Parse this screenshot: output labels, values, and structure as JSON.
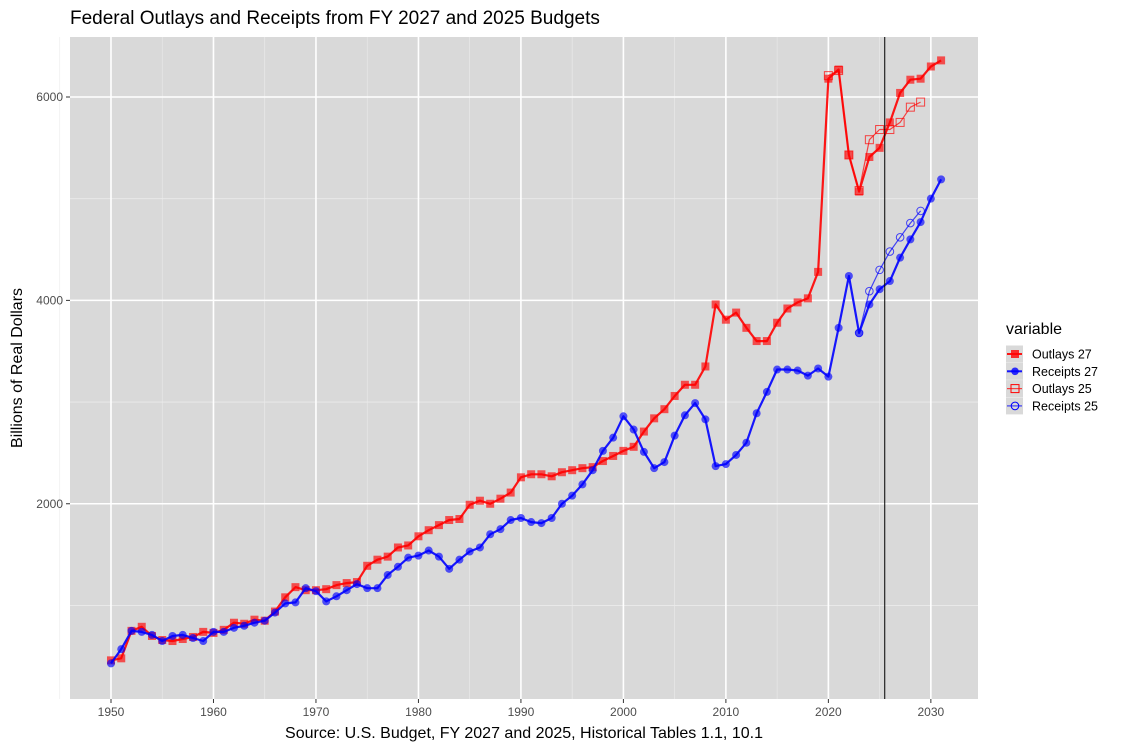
{
  "chart_data": {
    "type": "line",
    "title": "Federal Outlays and Receipts from FY 2027 and 2025 Budgets",
    "xlabel": "Source: U.S. Budget, FY 2027 and 2025, Historical Tables 1.1, 10.1",
    "ylabel": "Billions of Real Dollars",
    "xlim": [
      1946.0,
      2034.6
    ],
    "ylim": [
      80,
      6590
    ],
    "x_ticks": [
      1950,
      1960,
      1970,
      1980,
      1990,
      2000,
      2010,
      2020,
      2030
    ],
    "x_tick_labels": [
      "1950",
      "1960",
      "1970",
      "1980",
      "1990",
      "2000",
      "2010",
      "2020",
      "2030"
    ],
    "y_ticks": [
      2000,
      4000,
      6000
    ],
    "y_tick_labels": [
      "2000",
      "4000",
      "6000"
    ],
    "y_minor_gridlines": [
      1000,
      3000,
      5000
    ],
    "grid": true,
    "vline": 2025.5,
    "legend": {
      "title": "variable",
      "position": "right"
    },
    "series": [
      {
        "name": "Outlays 27",
        "color": "#ff0000",
        "marker": "square-filled",
        "x": [
          1950,
          1951,
          1952,
          1953,
          1954,
          1955,
          1956,
          1957,
          1958,
          1959,
          1960,
          1961,
          1962,
          1963,
          1964,
          1965,
          1966,
          1967,
          1968,
          1969,
          1970,
          1971,
          1972,
          1973,
          1974,
          1975,
          1976,
          1977,
          1978,
          1979,
          1980,
          1981,
          1982,
          1983,
          1984,
          1985,
          1986,
          1987,
          1988,
          1989,
          1990,
          1991,
          1992,
          1993,
          1994,
          1995,
          1996,
          1997,
          1998,
          1999,
          2000,
          2001,
          2002,
          2003,
          2004,
          2005,
          2006,
          2007,
          2008,
          2009,
          2010,
          2011,
          2012,
          2013,
          2014,
          2015,
          2016,
          2017,
          2018,
          2019,
          2020,
          2021,
          2022,
          2023,
          2024,
          2025,
          2026,
          2027,
          2028,
          2029,
          2030,
          2031
        ],
        "values": [
          460,
          480,
          750,
          790,
          700,
          660,
          650,
          670,
          690,
          740,
          730,
          760,
          830,
          820,
          860,
          850,
          940,
          1080,
          1180,
          1150,
          1150,
          1160,
          1200,
          1220,
          1230,
          1390,
          1450,
          1480,
          1570,
          1590,
          1680,
          1740,
          1790,
          1840,
          1850,
          1990,
          2030,
          2000,
          2050,
          2110,
          2260,
          2290,
          2290,
          2270,
          2310,
          2330,
          2350,
          2360,
          2420,
          2470,
          2520,
          2560,
          2710,
          2840,
          2930,
          3060,
          3170,
          3170,
          3350,
          3960,
          3810,
          3880,
          3730,
          3600,
          3600,
          3780,
          3920,
          3980,
          4020,
          4280,
          6180,
          6270,
          5430,
          5070,
          5410,
          5500,
          5750,
          6040,
          6170,
          6180,
          6300,
          6360
        ]
      },
      {
        "name": "Receipts 27",
        "color": "#0000ff",
        "marker": "circle-filled",
        "x": [
          1950,
          1951,
          1952,
          1953,
          1954,
          1955,
          1956,
          1957,
          1958,
          1959,
          1960,
          1961,
          1962,
          1963,
          1964,
          1965,
          1966,
          1967,
          1968,
          1969,
          1970,
          1971,
          1972,
          1973,
          1974,
          1975,
          1976,
          1977,
          1978,
          1979,
          1980,
          1981,
          1982,
          1983,
          1984,
          1985,
          1986,
          1987,
          1988,
          1989,
          1990,
          1991,
          1992,
          1993,
          1994,
          1995,
          1996,
          1997,
          1998,
          1999,
          2000,
          2001,
          2002,
          2003,
          2004,
          2005,
          2006,
          2007,
          2008,
          2009,
          2010,
          2011,
          2012,
          2013,
          2014,
          2015,
          2016,
          2017,
          2018,
          2019,
          2020,
          2021,
          2022,
          2023,
          2024,
          2025,
          2026,
          2027,
          2028,
          2029,
          2030,
          2031
        ],
        "values": [
          430,
          570,
          750,
          740,
          710,
          650,
          700,
          710,
          680,
          650,
          740,
          740,
          780,
          800,
          830,
          850,
          930,
          1020,
          1030,
          1170,
          1140,
          1040,
          1090,
          1150,
          1210,
          1170,
          1170,
          1300,
          1380,
          1470,
          1490,
          1540,
          1480,
          1360,
          1450,
          1530,
          1570,
          1700,
          1750,
          1840,
          1860,
          1820,
          1810,
          1860,
          2000,
          2080,
          2190,
          2330,
          2520,
          2650,
          2860,
          2730,
          2510,
          2350,
          2410,
          2670,
          2870,
          2990,
          2830,
          2370,
          2390,
          2480,
          2600,
          2890,
          3100,
          3320,
          3320,
          3310,
          3260,
          3330,
          3250,
          3730,
          4240,
          3680,
          3960,
          4110,
          4190,
          4420,
          4600,
          4770,
          5000,
          5190
        ]
      },
      {
        "name": "Outlays 25",
        "color": "#ff0000",
        "marker": "square-open",
        "x": [
          2020,
          2021,
          2022,
          2023,
          2024,
          2025,
          2026,
          2027,
          2028,
          2029
        ],
        "values": [
          6210,
          6260,
          5430,
          5080,
          5580,
          5680,
          5680,
          5750,
          5900,
          5950
        ]
      },
      {
        "name": "Receipts 25",
        "color": "#0000ff",
        "marker": "circle-open",
        "x": [
          2023,
          2024,
          2025,
          2026,
          2027,
          2028,
          2029
        ],
        "values": [
          3680,
          4090,
          4300,
          4480,
          4620,
          4760,
          4880
        ]
      }
    ]
  }
}
